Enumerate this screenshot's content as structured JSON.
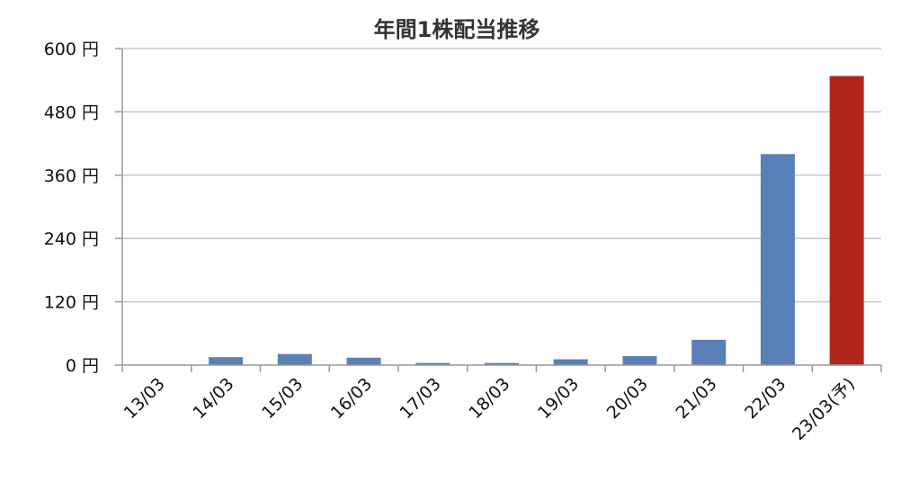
{
  "colors": {
    "actual": "#5a80b8",
    "forecast": "#b0261d",
    "grid": "#c8c8c8",
    "axis": "#999999"
  },
  "chart_data": {
    "type": "bar",
    "title": "年間1株配当推移",
    "xlabel": "",
    "ylabel": "",
    "ylim": [
      0,
      600
    ],
    "yticks": [
      0,
      120,
      240,
      360,
      480,
      600
    ],
    "ytick_labels": [
      "0 円",
      "120 円",
      "240 円",
      "360 円",
      "480 円",
      "600 円"
    ],
    "grid": true,
    "legend": "none",
    "categories": [
      "13/03",
      "14/03",
      "15/03",
      "16/03",
      "17/03",
      "18/03",
      "19/03",
      "20/03",
      "21/03",
      "22/03",
      "23/03(予)"
    ],
    "values": [
      0,
      15,
      21,
      14,
      4,
      4,
      11,
      17,
      48,
      400,
      548
    ],
    "forecast": [
      false,
      false,
      false,
      false,
      false,
      false,
      false,
      false,
      false,
      false,
      true
    ]
  }
}
